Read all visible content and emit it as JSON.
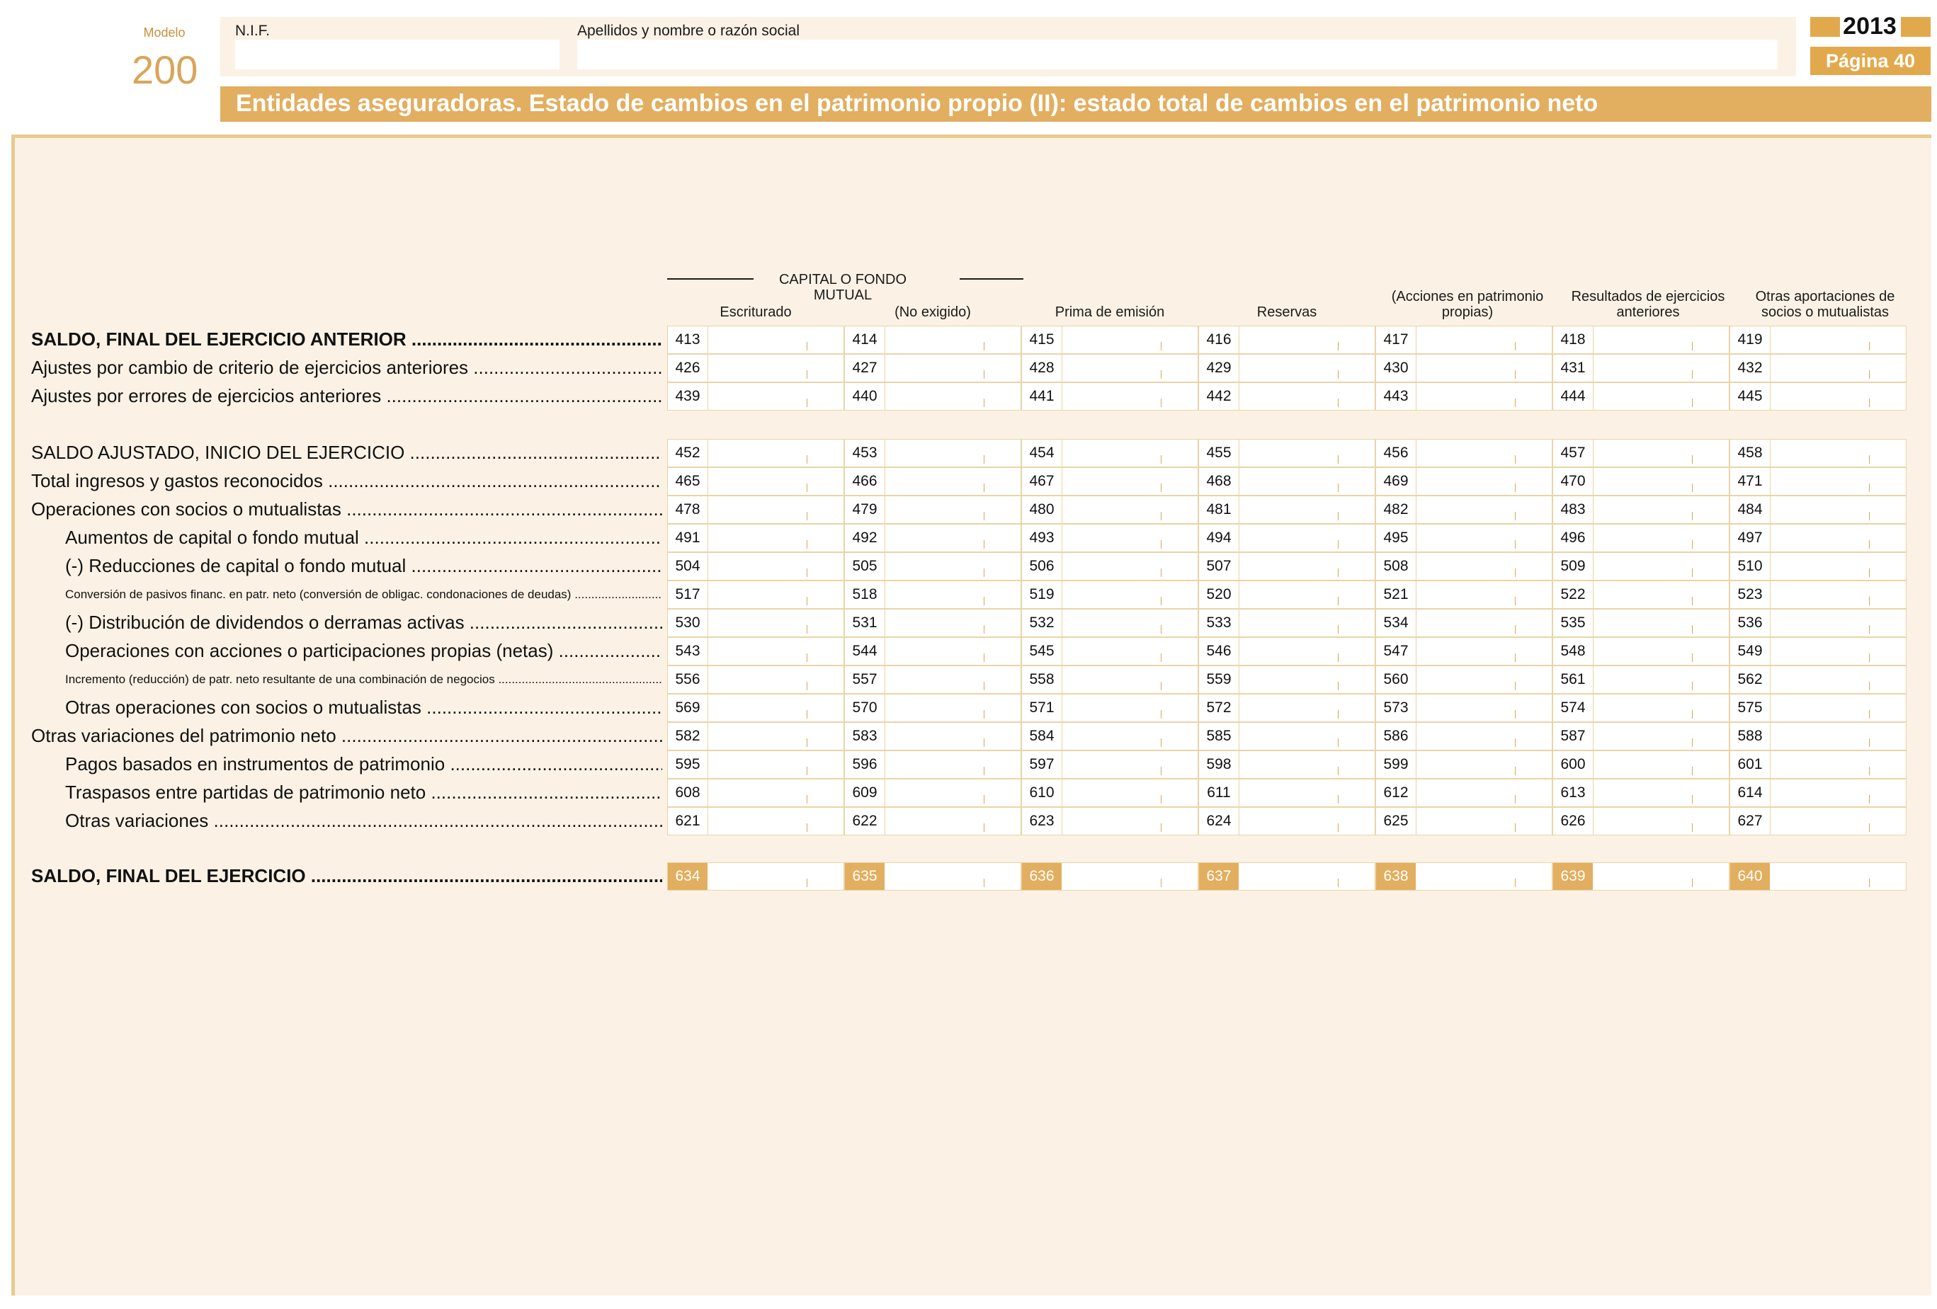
{
  "header": {
    "modelo_label": "Modelo",
    "modelo_number": "200",
    "nif_label": "N.I.F.",
    "name_label": "Apellidos y nombre o razón social",
    "year": "2013",
    "page": "Página 40"
  },
  "title": "Entidades aseguradoras. Estado de cambios en el patrimonio propio (II): estado total de cambios en el patrimonio neto",
  "columns": {
    "group_label": "CAPITAL O FONDO MUTUAL",
    "headers": [
      "Escriturado",
      "(No exigido)",
      "Prima de emisión",
      "Reservas",
      "(Acciones en patrimonio propias)",
      "Resultados de ejercicios anteriores",
      "Otras aportaciones de socios o mutualistas"
    ]
  },
  "rows": [
    {
      "label": "SALDO, FINAL DEL EJERCICIO ANTERIOR",
      "codes": [
        "413",
        "414",
        "415",
        "416",
        "417",
        "418",
        "419"
      ]
    },
    {
      "label": "Ajustes por cambio de criterio de ejercicios anteriores",
      "codes": [
        "426",
        "427",
        "428",
        "429",
        "430",
        "431",
        "432"
      ]
    },
    {
      "label": "Ajustes por errores de ejercicios anteriores",
      "codes": [
        "439",
        "440",
        "441",
        "442",
        "443",
        "444",
        "445"
      ]
    },
    {
      "label": "SALDO AJUSTADO, INICIO DEL EJERCICIO",
      "codes": [
        "452",
        "453",
        "454",
        "455",
        "456",
        "457",
        "458"
      ]
    },
    {
      "label": "Total ingresos y gastos reconocidos",
      "codes": [
        "465",
        "466",
        "467",
        "468",
        "469",
        "470",
        "471"
      ]
    },
    {
      "label": "Operaciones con socios o mutualistas",
      "codes": [
        "478",
        "479",
        "480",
        "481",
        "482",
        "483",
        "484"
      ]
    },
    {
      "label": "Aumentos de capital o fondo mutual",
      "codes": [
        "491",
        "492",
        "493",
        "494",
        "495",
        "496",
        "497"
      ]
    },
    {
      "label": "(-) Reducciones de capital o fondo mutual",
      "codes": [
        "504",
        "505",
        "506",
        "507",
        "508",
        "509",
        "510"
      ]
    },
    {
      "label": "Conversión de pasivos financ. en patr. neto (conversión de obligac. condonaciones de deudas)",
      "codes": [
        "517",
        "518",
        "519",
        "520",
        "521",
        "522",
        "523"
      ]
    },
    {
      "label": "(-) Distribución de dividendos o derramas activas",
      "codes": [
        "530",
        "531",
        "532",
        "533",
        "534",
        "535",
        "536"
      ]
    },
    {
      "label": "Operaciones con acciones o participaciones propias (netas)",
      "codes": [
        "543",
        "544",
        "545",
        "546",
        "547",
        "548",
        "549"
      ]
    },
    {
      "label": "Incremento (reducción) de patr. neto resultante de una combinación de negocios",
      "codes": [
        "556",
        "557",
        "558",
        "559",
        "560",
        "561",
        "562"
      ]
    },
    {
      "label": "Otras operaciones con socios o mutualistas",
      "codes": [
        "569",
        "570",
        "571",
        "572",
        "573",
        "574",
        "575"
      ]
    },
    {
      "label": "Otras variaciones del patrimonio neto",
      "codes": [
        "582",
        "583",
        "584",
        "585",
        "586",
        "587",
        "588"
      ]
    },
    {
      "label": "Pagos basados en instrumentos de patrimonio",
      "codes": [
        "595",
        "596",
        "597",
        "598",
        "599",
        "600",
        "601"
      ]
    },
    {
      "label": "Traspasos entre partidas de patrimonio neto",
      "codes": [
        "608",
        "609",
        "610",
        "611",
        "612",
        "613",
        "614"
      ]
    },
    {
      "label": "Otras variaciones",
      "codes": [
        "621",
        "622",
        "623",
        "624",
        "625",
        "626",
        "627"
      ]
    },
    {
      "label": "SALDO, FINAL DEL EJERCICIO",
      "codes": [
        "634",
        "635",
        "636",
        "637",
        "638",
        "639",
        "640"
      ]
    }
  ],
  "colors": {
    "accent": "#e2ae5f",
    "panel": "#fbf2e5",
    "border": "#ecd3a6"
  }
}
